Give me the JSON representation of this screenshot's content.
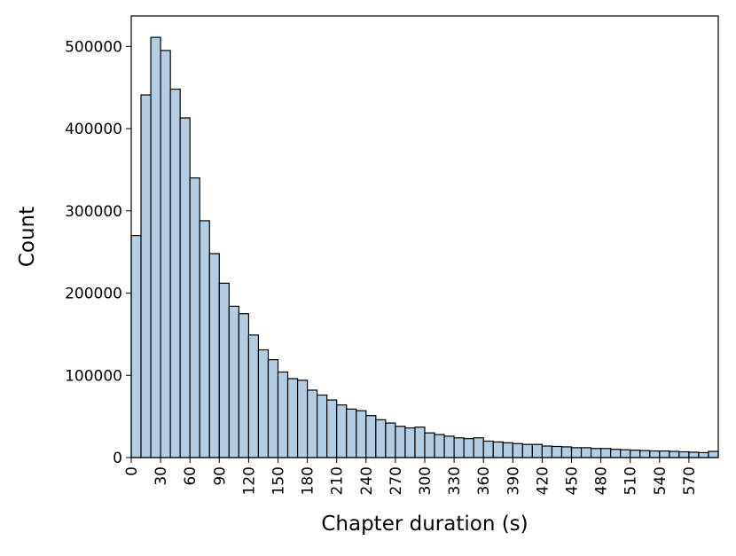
{
  "chart_data": {
    "type": "histogram",
    "x_label": "Chapter duration (s)",
    "y_label": "Count",
    "bins": [
      0,
      10,
      20,
      30,
      40,
      50,
      60,
      70,
      80,
      90,
      100,
      110,
      120,
      130,
      140,
      150,
      160,
      170,
      180,
      190,
      200,
      210,
      220,
      230,
      240,
      250,
      260,
      270,
      280,
      290,
      300,
      310,
      320,
      330,
      340,
      350,
      360,
      370,
      380,
      390,
      400,
      410,
      420,
      430,
      440,
      450,
      460,
      470,
      480,
      490,
      500,
      510,
      520,
      530,
      540,
      550,
      560,
      570,
      580,
      590,
      600
    ],
    "values": [
      270000,
      441000,
      511000,
      495000,
      448000,
      413000,
      340000,
      288000,
      248000,
      212000,
      184000,
      175000,
      149000,
      131000,
      119000,
      104000,
      96000,
      94000,
      82000,
      76000,
      70000,
      64000,
      59000,
      57000,
      51000,
      46000,
      42000,
      38000,
      36000,
      37000,
      30000,
      28000,
      26000,
      24000,
      23000,
      24000,
      20000,
      19000,
      18000,
      17000,
      16000,
      16000,
      14000,
      13500,
      13000,
      12000,
      12000,
      11000,
      11000,
      10000,
      9500,
      9000,
      8500,
      8000,
      8000,
      7500,
      7000,
      6500,
      6000,
      7500
    ],
    "color": "#b3cde3",
    "xlim": [
      0,
      600
    ],
    "xticks": [
      0,
      30,
      60,
      90,
      120,
      150,
      180,
      210,
      240,
      270,
      300,
      330,
      360,
      390,
      420,
      450,
      480,
      510,
      540,
      570
    ],
    "ylim": [
      0,
      537000
    ],
    "yticks": [
      0,
      100000,
      200000,
      300000,
      400000,
      500000
    ]
  }
}
